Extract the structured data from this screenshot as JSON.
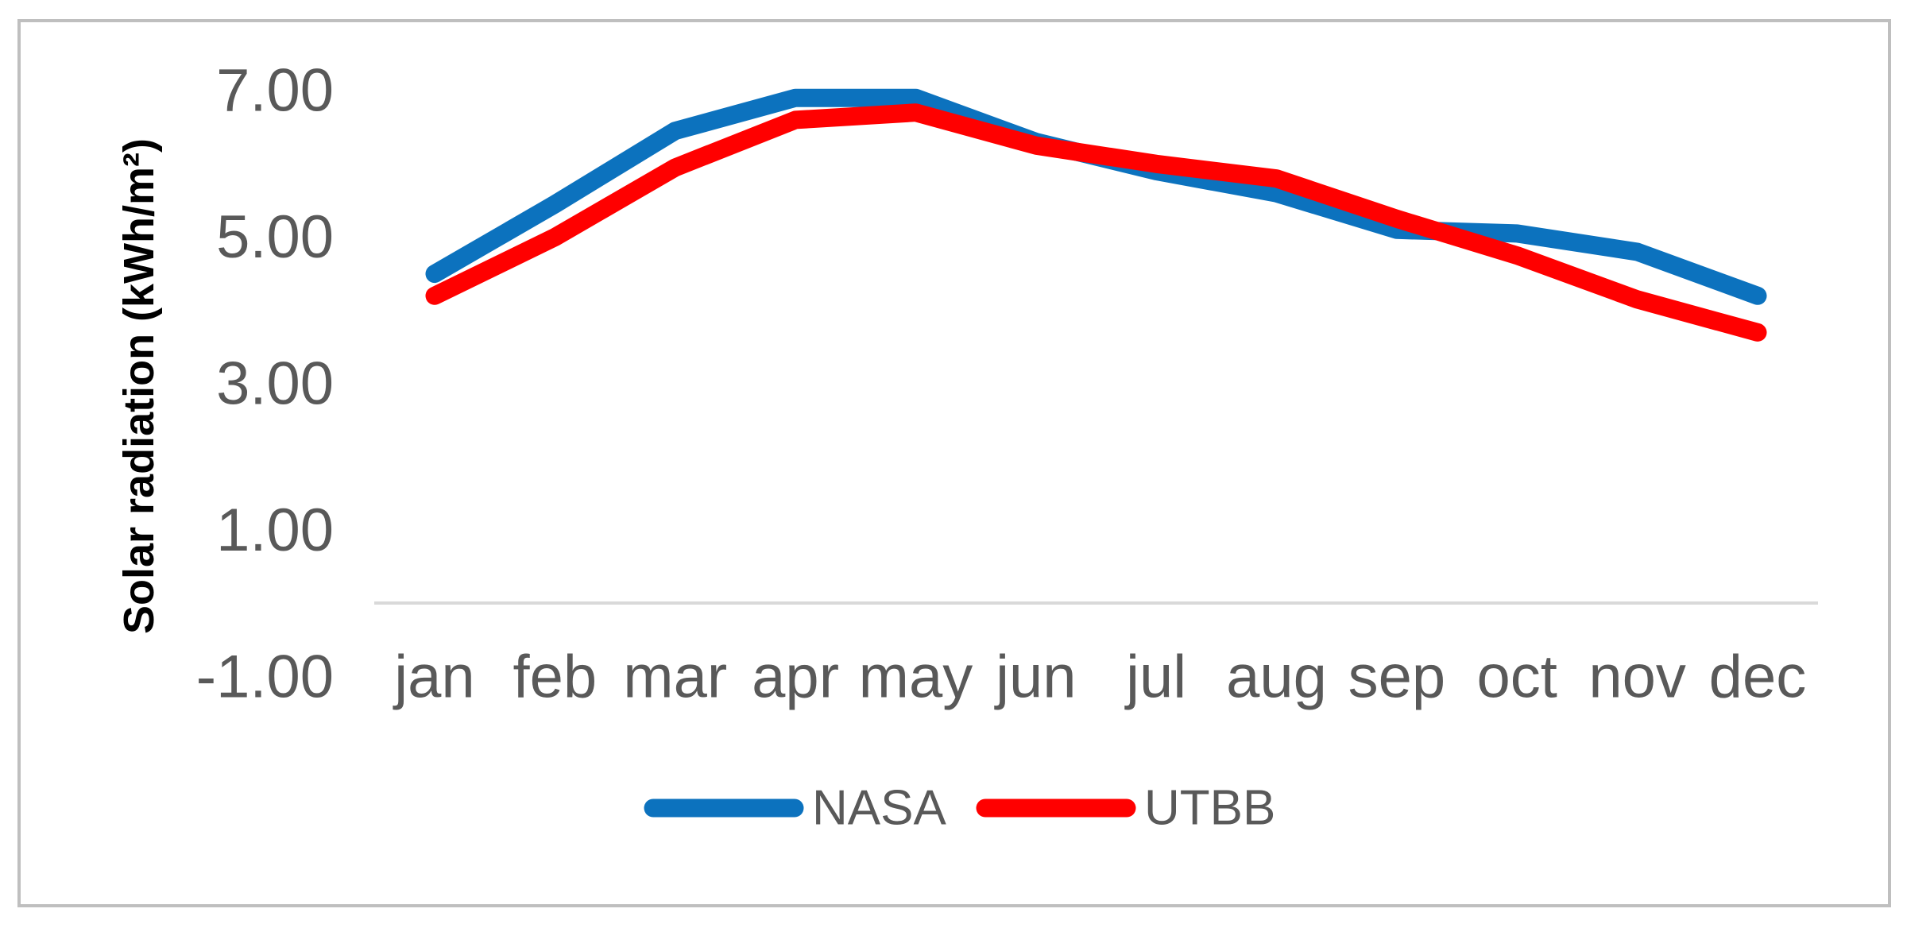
{
  "chart_data": {
    "type": "line",
    "title": "",
    "ylabel": "Solar radiation (kWh/m²)",
    "xlabel": "",
    "categories": [
      "jan",
      "feb",
      "mar",
      "apr",
      "may",
      "jun",
      "jul",
      "aug",
      "sep",
      "oct",
      "nov",
      "dec"
    ],
    "series": [
      {
        "name": "NASA",
        "color": "#0C72BE",
        "values": [
          4.5,
          5.45,
          6.45,
          6.9,
          6.9,
          6.3,
          5.9,
          5.6,
          5.1,
          5.05,
          4.8,
          4.2
        ]
      },
      {
        "name": "UTBB",
        "color": "#FF0000",
        "values": [
          4.2,
          5.0,
          5.95,
          6.6,
          6.7,
          6.25,
          6.0,
          5.8,
          5.25,
          4.75,
          4.15,
          3.7
        ]
      }
    ],
    "y_axis": {
      "min": -1,
      "max": 7,
      "tick_step": 2,
      "ticks": [
        {
          "label": "7.00",
          "value": 7
        },
        {
          "label": "5.00",
          "value": 5
        },
        {
          "label": "3.00",
          "value": 3
        },
        {
          "label": "1.00",
          "value": 1
        },
        {
          "label": "-1.00",
          "value": -1
        }
      ]
    },
    "grid": false,
    "legend_position": "bottom"
  },
  "colors": {
    "nasa_line": "#0C72BE",
    "utbb_line": "#FF0000",
    "tick_text": "#595959",
    "legend_text": "#595959",
    "axis_line": "#D9D9D9",
    "ylabel_text": "#000000",
    "frame_border": "#BFBFBF",
    "background": "#FFFFFF"
  }
}
